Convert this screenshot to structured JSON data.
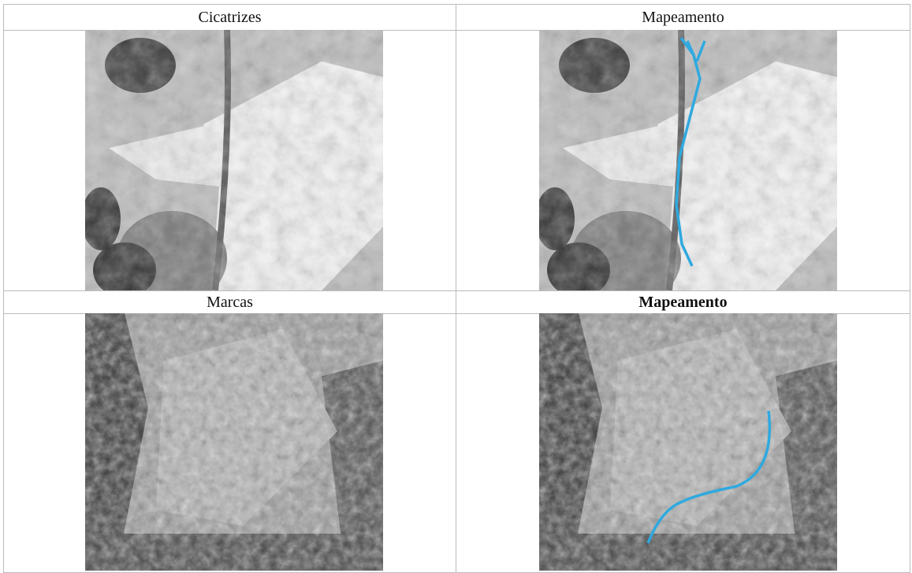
{
  "table": {
    "rows": [
      [
        "Cicatrizes",
        "Mapeamento"
      ],
      [
        "Marcas",
        "Mapeamento"
      ]
    ]
  }
}
